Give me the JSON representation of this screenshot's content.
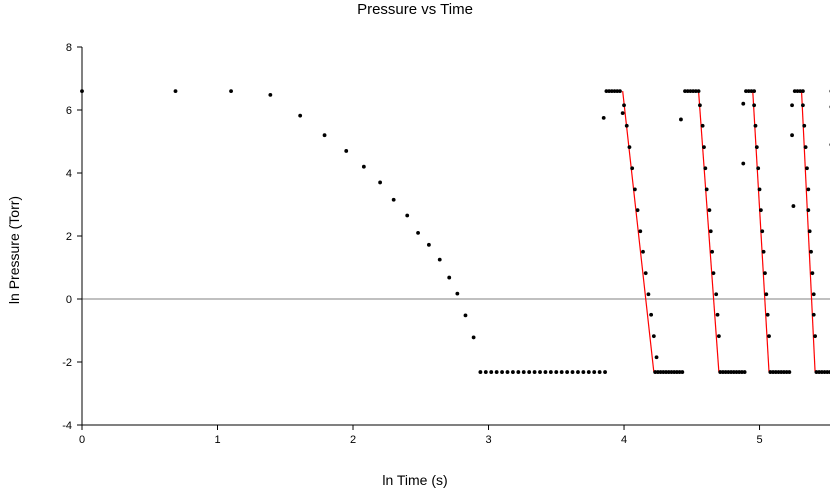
{
  "chart_data": {
    "type": "scatter",
    "title": "Pressure vs Time",
    "xlabel": "ln Time (s)",
    "ylabel": "ln Pressure (Torr)",
    "xlim": [
      0,
      5.52
    ],
    "ylim": [
      -4,
      8
    ],
    "x_ticks": [
      0,
      1,
      2,
      3,
      4,
      5
    ],
    "y_ticks": [
      -4,
      -2,
      0,
      2,
      4,
      6,
      8
    ],
    "grid": false,
    "legend": "none",
    "zero_line": true,
    "colors": {
      "points": "#000000",
      "fit_lines": "#ff0000",
      "axis": "#000000",
      "zero_line": "#808080"
    },
    "series": [
      {
        "marker": "dot",
        "points": [
          [
            0.0,
            6.6
          ],
          [
            0.69,
            6.6
          ],
          [
            1.1,
            6.6
          ],
          [
            1.39,
            6.48
          ],
          [
            1.61,
            5.82
          ],
          [
            1.79,
            5.2
          ],
          [
            1.95,
            4.7
          ],
          [
            2.08,
            4.2
          ],
          [
            2.2,
            3.7
          ],
          [
            2.3,
            3.15
          ],
          [
            2.4,
            2.65
          ],
          [
            2.48,
            2.1
          ],
          [
            2.56,
            1.72
          ],
          [
            2.64,
            1.25
          ],
          [
            2.71,
            0.68
          ],
          [
            2.77,
            0.17
          ],
          [
            2.83,
            -0.52
          ],
          [
            2.89,
            -1.22
          ],
          [
            2.94,
            -2.32
          ],
          [
            2.98,
            -2.32
          ],
          [
            3.02,
            -2.32
          ],
          [
            3.06,
            -2.32
          ],
          [
            3.1,
            -2.32
          ],
          [
            3.14,
            -2.32
          ],
          [
            3.18,
            -2.32
          ],
          [
            3.22,
            -2.32
          ],
          [
            3.26,
            -2.32
          ],
          [
            3.3,
            -2.32
          ],
          [
            3.34,
            -2.32
          ],
          [
            3.38,
            -2.32
          ],
          [
            3.42,
            -2.32
          ],
          [
            3.46,
            -2.32
          ],
          [
            3.5,
            -2.32
          ],
          [
            3.54,
            -2.32
          ],
          [
            3.58,
            -2.32
          ],
          [
            3.62,
            -2.32
          ],
          [
            3.66,
            -2.32
          ],
          [
            3.7,
            -2.32
          ],
          [
            3.74,
            -2.32
          ],
          [
            3.78,
            -2.32
          ],
          [
            3.82,
            -2.32
          ],
          [
            3.86,
            -2.32
          ],
          [
            3.85,
            5.75
          ],
          [
            3.87,
            6.6
          ],
          [
            3.89,
            6.6
          ],
          [
            3.91,
            6.6
          ],
          [
            3.93,
            6.6
          ],
          [
            3.95,
            6.6
          ],
          [
            3.97,
            6.6
          ],
          [
            3.99,
            5.9
          ],
          [
            4.0,
            6.15
          ],
          [
            4.02,
            5.5
          ],
          [
            4.04,
            4.82
          ],
          [
            4.06,
            4.15
          ],
          [
            4.08,
            3.48
          ],
          [
            4.1,
            2.82
          ],
          [
            4.12,
            2.15
          ],
          [
            4.14,
            1.5
          ],
          [
            4.16,
            0.82
          ],
          [
            4.18,
            0.15
          ],
          [
            4.2,
            -0.5
          ],
          [
            4.22,
            -1.18
          ],
          [
            4.24,
            -1.85
          ],
          [
            4.23,
            -2.32
          ],
          [
            4.25,
            -2.32
          ],
          [
            4.27,
            -2.32
          ],
          [
            4.29,
            -2.32
          ],
          [
            4.31,
            -2.32
          ],
          [
            4.33,
            -2.32
          ],
          [
            4.35,
            -2.32
          ],
          [
            4.37,
            -2.32
          ],
          [
            4.39,
            -2.32
          ],
          [
            4.41,
            -2.32
          ],
          [
            4.43,
            -2.32
          ],
          [
            4.42,
            5.7
          ],
          [
            4.45,
            6.6
          ],
          [
            4.47,
            6.6
          ],
          [
            4.49,
            6.6
          ],
          [
            4.51,
            6.6
          ],
          [
            4.53,
            6.6
          ],
          [
            4.55,
            6.6
          ],
          [
            4.56,
            6.15
          ],
          [
            4.58,
            5.5
          ],
          [
            4.59,
            4.82
          ],
          [
            4.6,
            4.15
          ],
          [
            4.61,
            3.48
          ],
          [
            4.63,
            2.82
          ],
          [
            4.64,
            2.15
          ],
          [
            4.65,
            1.5
          ],
          [
            4.66,
            0.82
          ],
          [
            4.68,
            0.15
          ],
          [
            4.69,
            -0.5
          ],
          [
            4.7,
            -1.18
          ],
          [
            4.71,
            -2.32
          ],
          [
            4.73,
            -2.32
          ],
          [
            4.75,
            -2.32
          ],
          [
            4.77,
            -2.32
          ],
          [
            4.79,
            -2.32
          ],
          [
            4.81,
            -2.32
          ],
          [
            4.83,
            -2.32
          ],
          [
            4.85,
            -2.32
          ],
          [
            4.87,
            -2.32
          ],
          [
            4.89,
            -2.32
          ],
          [
            4.88,
            6.2
          ],
          [
            4.88,
            4.3
          ],
          [
            4.9,
            6.6
          ],
          [
            4.92,
            6.6
          ],
          [
            4.94,
            6.6
          ],
          [
            4.96,
            6.6
          ],
          [
            4.96,
            6.15
          ],
          [
            4.97,
            5.5
          ],
          [
            4.98,
            4.82
          ],
          [
            4.99,
            4.15
          ],
          [
            5.0,
            3.48
          ],
          [
            5.01,
            2.82
          ],
          [
            5.02,
            2.15
          ],
          [
            5.03,
            1.5
          ],
          [
            5.04,
            0.82
          ],
          [
            5.05,
            0.15
          ],
          [
            5.06,
            -0.5
          ],
          [
            5.07,
            -1.18
          ],
          [
            5.08,
            -2.32
          ],
          [
            5.1,
            -2.32
          ],
          [
            5.12,
            -2.32
          ],
          [
            5.14,
            -2.32
          ],
          [
            5.16,
            -2.32
          ],
          [
            5.18,
            -2.32
          ],
          [
            5.2,
            -2.32
          ],
          [
            5.22,
            -2.32
          ],
          [
            5.24,
            6.15
          ],
          [
            5.24,
            5.2
          ],
          [
            5.25,
            2.95
          ],
          [
            5.26,
            6.6
          ],
          [
            5.28,
            6.6
          ],
          [
            5.3,
            6.6
          ],
          [
            5.32,
            6.6
          ],
          [
            5.32,
            6.15
          ],
          [
            5.33,
            5.5
          ],
          [
            5.34,
            4.82
          ],
          [
            5.35,
            4.15
          ],
          [
            5.36,
            3.48
          ],
          [
            5.36,
            2.82
          ],
          [
            5.37,
            2.15
          ],
          [
            5.38,
            1.5
          ],
          [
            5.39,
            0.82
          ],
          [
            5.4,
            0.15
          ],
          [
            5.4,
            -0.5
          ],
          [
            5.41,
            -1.18
          ],
          [
            5.42,
            -2.32
          ],
          [
            5.44,
            -2.32
          ],
          [
            5.46,
            -2.32
          ],
          [
            5.48,
            -2.32
          ],
          [
            5.5,
            -2.32
          ],
          [
            5.52,
            -2.32
          ],
          [
            5.53,
            6.6
          ],
          [
            5.53,
            6.1
          ],
          [
            5.53,
            4.9
          ]
        ]
      }
    ],
    "fit_lines": [
      {
        "points": [
          [
            3.99,
            6.6
          ],
          [
            4.22,
            -2.32
          ]
        ]
      },
      {
        "points": [
          [
            4.55,
            6.6
          ],
          [
            4.7,
            -2.32
          ]
        ]
      },
      {
        "points": [
          [
            4.95,
            6.6
          ],
          [
            5.07,
            -2.32
          ]
        ]
      },
      {
        "points": [
          [
            5.31,
            6.6
          ],
          [
            5.41,
            -2.32
          ]
        ]
      }
    ]
  }
}
